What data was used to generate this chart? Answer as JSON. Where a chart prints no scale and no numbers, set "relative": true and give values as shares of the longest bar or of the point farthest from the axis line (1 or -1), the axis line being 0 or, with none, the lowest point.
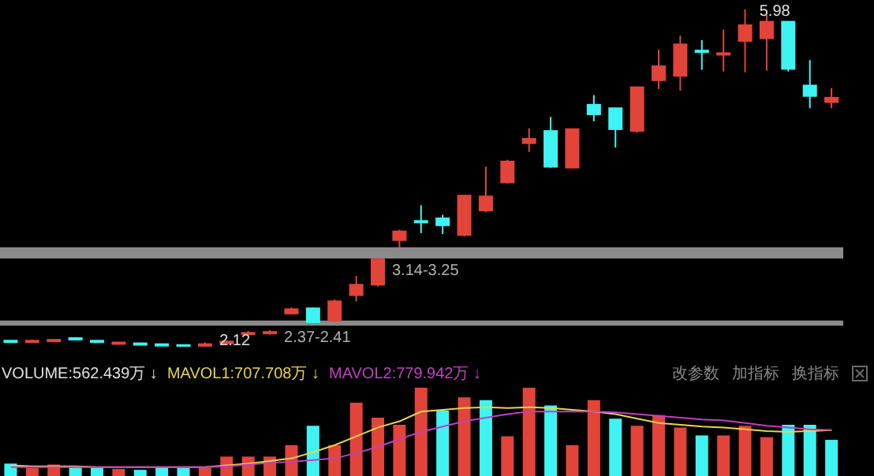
{
  "chart_data": [
    {
      "type": "candlestick",
      "categories": [
        null,
        null,
        null,
        null,
        null,
        null,
        null,
        null,
        null,
        null,
        null,
        null,
        null,
        null,
        null,
        null,
        null,
        null,
        null,
        null,
        null,
        null,
        null,
        null,
        null,
        null,
        null,
        null,
        null,
        null,
        null,
        null,
        null,
        null,
        null,
        null,
        null,
        null,
        null
      ],
      "ohlc": [
        [
          2.19,
          2.19,
          2.18,
          2.18
        ],
        [
          2.18,
          2.2,
          2.17,
          2.19
        ],
        [
          2.19,
          2.21,
          2.18,
          2.2
        ],
        [
          2.22,
          2.23,
          2.21,
          2.21
        ],
        [
          2.19,
          2.19,
          2.18,
          2.18
        ],
        [
          2.16,
          2.17,
          2.15,
          2.17
        ],
        [
          2.16,
          2.16,
          2.15,
          2.15
        ],
        [
          2.15,
          2.15,
          2.14,
          2.14
        ],
        [
          2.14,
          2.14,
          2.13,
          2.13
        ],
        [
          2.13,
          2.17,
          2.12,
          2.15
        ],
        [
          2.16,
          2.19,
          2.15,
          2.18
        ],
        [
          2.27,
          2.3,
          2.26,
          2.28
        ],
        [
          2.28,
          2.31,
          2.26,
          2.29
        ],
        [
          2.5,
          2.57,
          2.49,
          2.55
        ],
        [
          2.56,
          2.57,
          2.39,
          2.4
        ],
        [
          2.42,
          2.66,
          2.4,
          2.64
        ],
        [
          2.71,
          2.93,
          2.64,
          2.83
        ],
        [
          2.83,
          3.14,
          2.81,
          3.12
        ],
        [
          3.34,
          3.46,
          3.25,
          3.44
        ],
        [
          3.56,
          3.74,
          3.42,
          3.55
        ],
        [
          3.59,
          3.63,
          3.41,
          3.51
        ],
        [
          3.4,
          3.86,
          3.38,
          3.85
        ],
        [
          3.68,
          4.18,
          3.66,
          3.84
        ],
        [
          4.0,
          4.26,
          3.99,
          4.24
        ],
        [
          4.45,
          4.62,
          4.35,
          4.5
        ],
        [
          4.59,
          4.75,
          4.17,
          4.18
        ],
        [
          4.17,
          4.62,
          4.16,
          4.61
        ],
        [
          4.89,
          5.0,
          4.7,
          4.78
        ],
        [
          4.85,
          4.85,
          4.4,
          4.61
        ],
        [
          4.59,
          5.09,
          4.57,
          5.09
        ],
        [
          5.17,
          5.52,
          5.07,
          5.33
        ],
        [
          5.22,
          5.68,
          5.05,
          5.58
        ],
        [
          5.51,
          5.63,
          5.29,
          5.5
        ],
        [
          5.47,
          5.75,
          5.27,
          5.48
        ],
        [
          5.62,
          5.98,
          5.26,
          5.8
        ],
        [
          5.65,
          5.92,
          5.28,
          5.84
        ],
        [
          5.84,
          5.84,
          5.27,
          5.3
        ],
        [
          5.11,
          5.4,
          4.85,
          4.99
        ],
        [
          4.92,
          5.08,
          4.85,
          4.97
        ]
      ],
      "colors": [
        "#3ff3f3",
        "#e2443a",
        "#e2443a",
        "#3ff3f3",
        "#3ff3f3",
        "#e2443a",
        "#3ff3f3",
        "#3ff3f3",
        "#3ff3f3",
        "#e2443a",
        "#e2443a",
        "#e2443a",
        "#e2443a",
        "#e2443a",
        "#3ff3f3",
        "#e2443a",
        "#e2443a",
        "#e2443a",
        "#e2443a",
        "#3ff3f3",
        "#3ff3f3",
        "#e2443a",
        "#e2443a",
        "#e2443a",
        "#e2443a",
        "#3ff3f3",
        "#e2443a",
        "#3ff3f3",
        "#3ff3f3",
        "#e2443a",
        "#e2443a",
        "#e2443a",
        "#3ff3f3",
        "#e2443a",
        "#e2443a",
        "#e2443a",
        "#3ff3f3",
        "#3ff3f3",
        "#e2443a"
      ],
      "bands": [
        {
          "axis": "y",
          "from": 2.37,
          "to": 2.41,
          "label": "2.37-2.41",
          "color": "#8a8a8a"
        },
        {
          "axis": "y",
          "from": 3.14,
          "to": 3.25,
          "label": "3.14-3.25",
          "color": "#8a8a8a"
        }
      ],
      "annotations": [
        "5.98",
        "2.12"
      ]
    },
    {
      "type": "bar",
      "relative": true,
      "categories": [
        null,
        null,
        null,
        null,
        null,
        null,
        null,
        null,
        null,
        null,
        null,
        null,
        null,
        null,
        null,
        null,
        null,
        null,
        null,
        null,
        null,
        null,
        null,
        null,
        null,
        null,
        null,
        null,
        null,
        null,
        null,
        null,
        null,
        null,
        null,
        null,
        null,
        null,
        null
      ],
      "series": [
        {
          "colors": [
            "#3ff3f3",
            "#e2443a",
            "#e2443a",
            "#3ff3f3",
            "#3ff3f3",
            "#e2443a",
            "#3ff3f3",
            "#3ff3f3",
            "#3ff3f3",
            "#e2443a",
            "#e2443a",
            "#e2443a",
            "#e2443a",
            "#e2443a",
            "#3ff3f3",
            "#e2443a",
            "#e2443a",
            "#e2443a",
            "#e2443a",
            "#e2443a",
            "#3ff3f3",
            "#e2443a",
            "#3ff3f3",
            "#e2443a",
            "#e2443a",
            "#3ff3f3",
            "#e2443a",
            "#e2443a",
            "#3ff3f3",
            "#e2443a",
            "#e2443a",
            "#e2443a",
            "#3ff3f3",
            "#e2443a",
            "#e2443a",
            "#e2443a",
            "#3ff3f3",
            "#3ff3f3",
            "#3ff3f3"
          ],
          "values": [
            0.14,
            0.09,
            0.13,
            0.1,
            0.1,
            0.08,
            0.07,
            0.1,
            0.09,
            0.09,
            0.22,
            0.22,
            0.22,
            0.35,
            0.57,
            0.35,
            0.83,
            0.66,
            0.58,
            1.0,
            0.74,
            0.89,
            0.86,
            0.45,
            1.0,
            0.8,
            0.35,
            0.86,
            0.65,
            0.57,
            0.69,
            0.55,
            0.46,
            0.46,
            0.57,
            0.44,
            0.58,
            0.58,
            0.41
          ]
        },
        {
          "type": "line",
          "name": "MAVOL1:707.708万 ↓",
          "color": "#e8d44d",
          "values": [
            0.12,
            0.11,
            0.11,
            0.11,
            0.1,
            0.1,
            0.1,
            0.1,
            0.1,
            0.1,
            0.12,
            0.14,
            0.17,
            0.2,
            0.27,
            0.35,
            0.45,
            0.55,
            0.62,
            0.73,
            0.75,
            0.77,
            0.78,
            0.77,
            0.78,
            0.77,
            0.75,
            0.73,
            0.7,
            0.65,
            0.6,
            0.58,
            0.56,
            0.55,
            0.53,
            0.51,
            0.5,
            0.51,
            0.52
          ]
        },
        {
          "type": "line",
          "name": "MAVOL2:779.942万 ↓",
          "color": "#c040c0",
          "values": [
            0.1,
            0.1,
            0.1,
            0.1,
            0.1,
            0.1,
            0.1,
            0.1,
            0.1,
            0.1,
            0.11,
            0.13,
            0.15,
            0.16,
            0.18,
            0.2,
            0.26,
            0.33,
            0.42,
            0.5,
            0.56,
            0.62,
            0.66,
            0.7,
            0.73,
            0.73,
            0.73,
            0.73,
            0.72,
            0.7,
            0.68,
            0.66,
            0.64,
            0.63,
            0.6,
            0.57,
            0.55,
            0.53,
            0.52
          ]
        }
      ],
      "annotations": [
        "VOLUME:562.439万 ↓",
        "改参数",
        "加指标",
        "换指标"
      ]
    }
  ]
}
